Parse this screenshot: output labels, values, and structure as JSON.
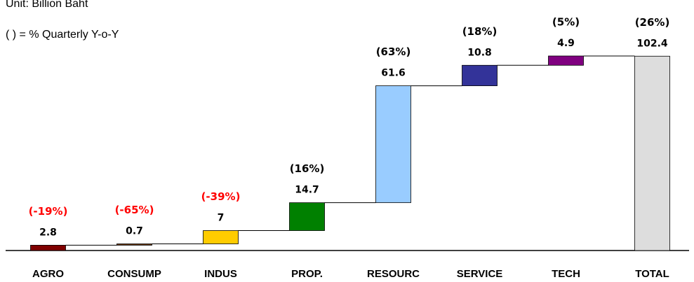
{
  "chart_data": {
    "type": "waterfall",
    "notes": [
      "Unit: Billion Baht",
      "( ) = % Quarterly Y-o-Y"
    ],
    "categories": [
      "AGRO",
      "CONSUMP",
      "INDUS",
      "PROP.",
      "RESOURC",
      "SERVICE",
      "TECH",
      "TOTAL"
    ],
    "values": [
      2.8,
      0.7,
      7,
      14.7,
      61.6,
      10.8,
      4.9,
      102.4
    ],
    "is_total": [
      false,
      false,
      false,
      false,
      false,
      false,
      false,
      true
    ],
    "colors": [
      "#800000",
      "#663300",
      "#ffcc00",
      "#008000",
      "#99ccff",
      "#333399",
      "#800080",
      "#dddddd"
    ],
    "change_labels": [
      "(-19%)",
      "(-65%)",
      "(-39%)",
      "(16%)",
      "(63%)",
      "(18%)",
      "(5%)",
      "(26%)"
    ],
    "change_colors": [
      "#ff0000",
      "#ff0000",
      "#ff0000",
      "#000000",
      "#000000",
      "#000000",
      "#000000",
      "#000000"
    ]
  }
}
